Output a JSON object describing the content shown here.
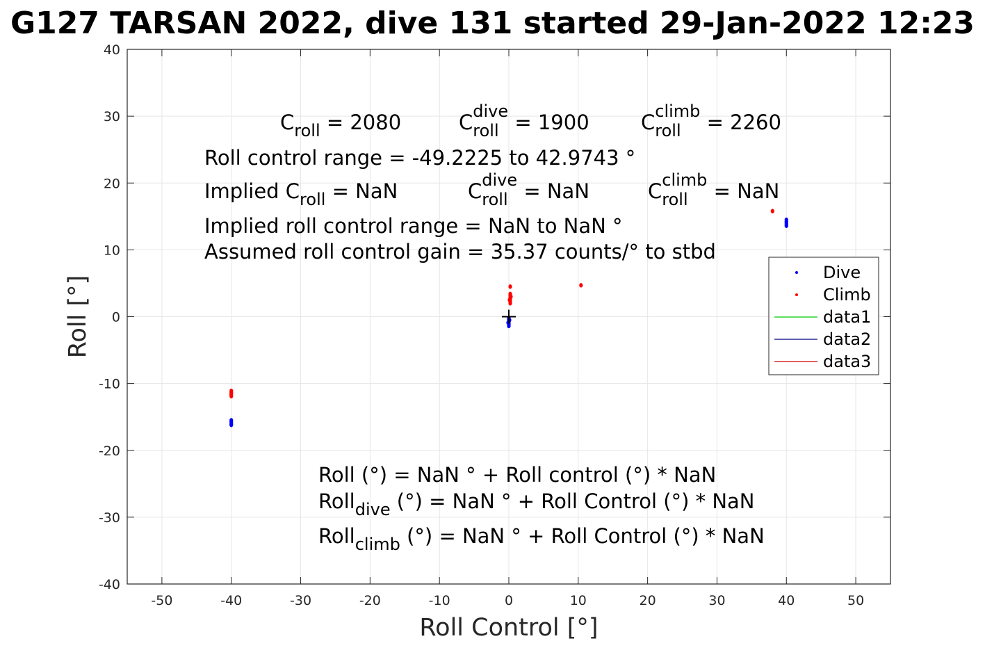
{
  "chart_data": {
    "type": "scatter",
    "title": "G127 TARSAN 2022, dive 131 started 29-Jan-2022 12:23",
    "xlabel": "Roll Control [°]",
    "ylabel": "Roll [°]",
    "xlim": [
      -55,
      55
    ],
    "ylim": [
      -40,
      40
    ],
    "xticks": [
      -50,
      -40,
      -30,
      -20,
      -10,
      0,
      10,
      20,
      30,
      40,
      50
    ],
    "yticks": [
      -40,
      -30,
      -20,
      -10,
      0,
      10,
      20,
      30,
      40
    ],
    "grid": true,
    "legend_position": "right",
    "colors": {
      "dive": "#0000ff",
      "climb": "#ff0000",
      "data1": "#00cc00",
      "data2": "#000080",
      "data3": "#cc0000",
      "grid": "#e6e6e6",
      "marker": "#000000"
    },
    "series": [
      {
        "name": "Dive",
        "style": "points",
        "color": "#0000ff",
        "points": [
          [
            -40.0,
            -15.5
          ],
          [
            -40.0,
            -15.7
          ],
          [
            -40.0,
            -15.9
          ],
          [
            -40.0,
            -16.1
          ],
          [
            -40.0,
            -16.2
          ],
          [
            0.0,
            -0.2
          ],
          [
            0.0,
            -0.4
          ],
          [
            0.0,
            -0.6
          ],
          [
            0.0,
            -0.8
          ],
          [
            0.0,
            -1.0
          ],
          [
            0.0,
            -1.2
          ],
          [
            0.0,
            -1.4
          ],
          [
            0.1,
            -0.5
          ],
          [
            -0.1,
            -0.9
          ],
          [
            40.0,
            13.6
          ],
          [
            40.0,
            13.8
          ],
          [
            40.0,
            14.0
          ],
          [
            40.0,
            14.2
          ],
          [
            40.0,
            14.5
          ]
        ]
      },
      {
        "name": "Climb",
        "style": "points",
        "color": "#ff0000",
        "points": [
          [
            -40.0,
            -11.1
          ],
          [
            -40.0,
            -11.3
          ],
          [
            -40.0,
            -11.5
          ],
          [
            -40.0,
            -11.7
          ],
          [
            -40.0,
            -11.9
          ],
          [
            0.2,
            2.0
          ],
          [
            0.2,
            2.3
          ],
          [
            0.2,
            2.6
          ],
          [
            0.2,
            2.9
          ],
          [
            0.2,
            3.2
          ],
          [
            0.2,
            3.4
          ],
          [
            0.1,
            2.5
          ],
          [
            0.3,
            3.0
          ],
          [
            0.2,
            4.5
          ],
          [
            10.4,
            4.7
          ],
          [
            38.0,
            15.8
          ]
        ]
      },
      {
        "name": "data1",
        "style": "line",
        "color": "#00cc00",
        "points": []
      },
      {
        "name": "data2",
        "style": "line",
        "color": "#000080",
        "points": []
      },
      {
        "name": "data3",
        "style": "line",
        "color": "#cc0000",
        "points": []
      }
    ],
    "marker_plus": {
      "x": 0,
      "y": 0
    },
    "annotations": {
      "c_roll": {
        "base": "C",
        "sub": "roll",
        "sup": "",
        "rest": " = 2080"
      },
      "c_roll_dive": {
        "base": "C",
        "sub": "roll",
        "sup": "dive",
        "rest": " = 1900"
      },
      "c_roll_climb": {
        "base": "C",
        "sub": "roll",
        "sup": "climb",
        "rest": " = 2260"
      },
      "range": "Roll control range = -49.2225 to 42.9743 °",
      "implied_c_roll": {
        "base": "Implied C",
        "sub": "roll",
        "sup": "",
        "rest": " =  NaN"
      },
      "implied_c_dive": {
        "base": "C",
        "sub": "roll",
        "sup": "dive",
        "rest": " =  NaN"
      },
      "implied_c_climb": {
        "base": "C",
        "sub": "roll",
        "sup": "climb",
        "rest": " =  NaN"
      },
      "implied_range": "Implied roll control range = NaN to NaN °",
      "gain": "Assumed roll control gain = 35.37 counts/° to stbd",
      "roll_eq": "Roll (°) = NaN ° + Roll control (°) * NaN",
      "roll_dive_eq": {
        "base": "Roll",
        "sub": "dive",
        "sup": "",
        "rest": " (°) = NaN ° + Roll Control (°) * NaN"
      },
      "roll_climb_eq": {
        "base": "Roll",
        "sub": "climb",
        "sup": "",
        "rest": " (°) = NaN ° + Roll Control (°) * NaN"
      }
    }
  }
}
